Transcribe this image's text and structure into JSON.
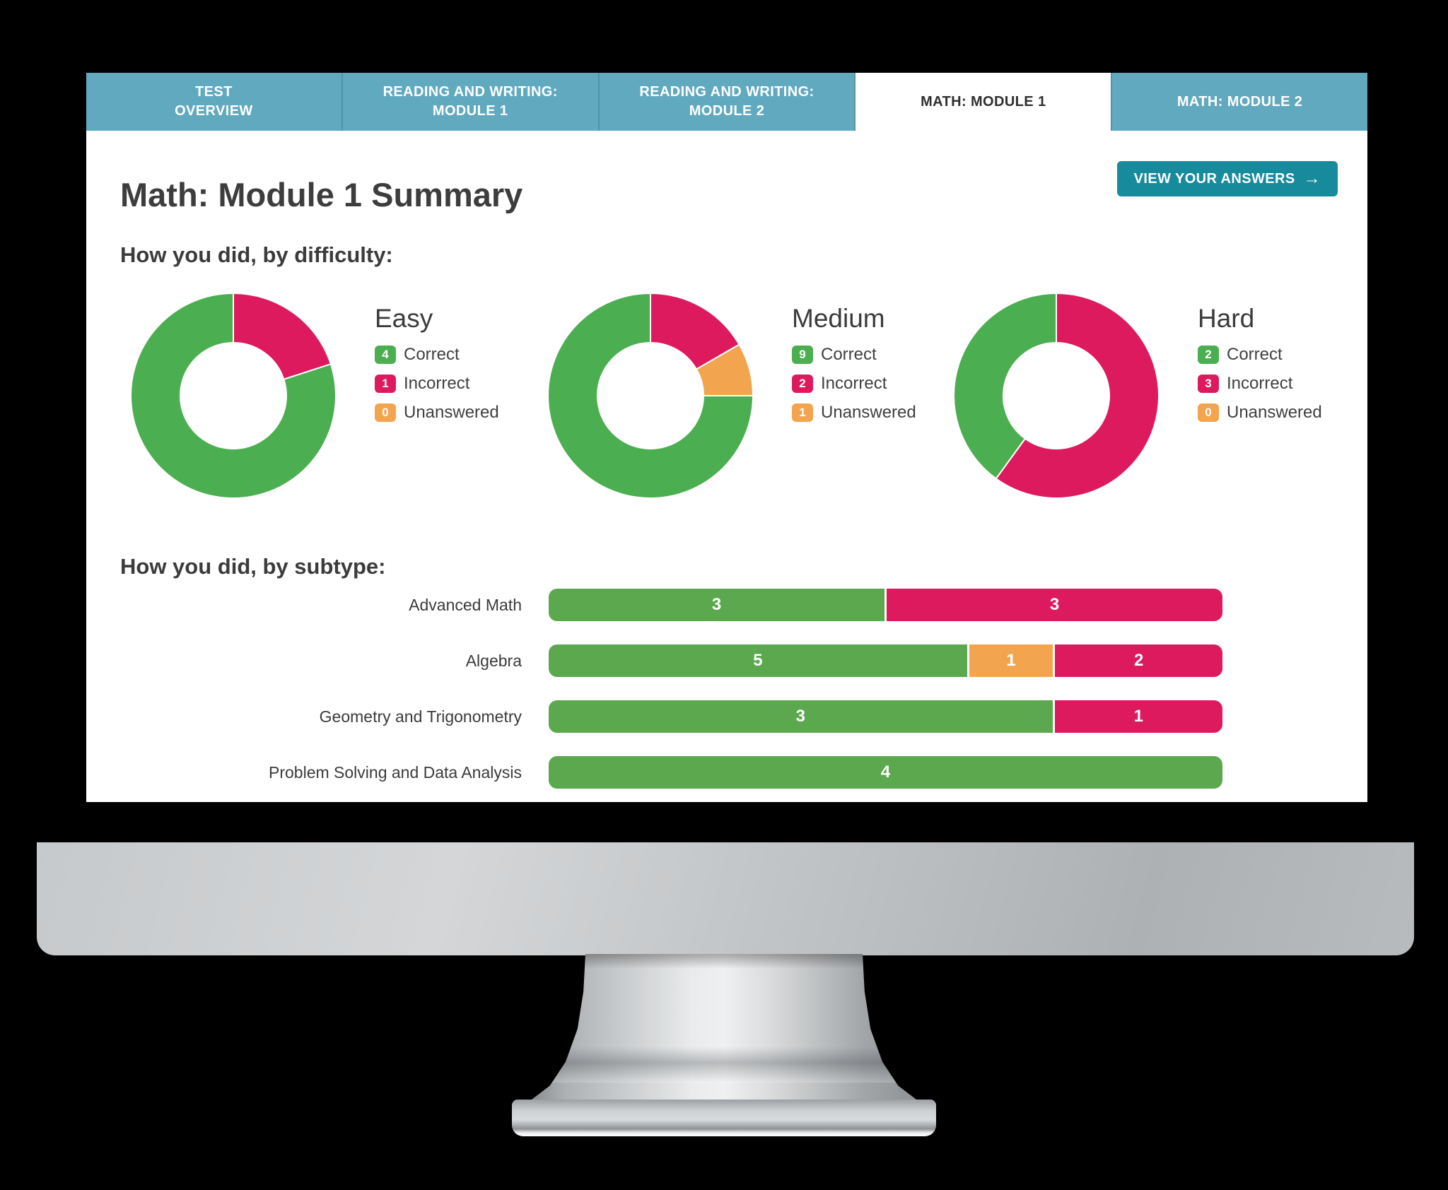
{
  "colors": {
    "tab_bg": "#61a9bf",
    "tab_separator": "#4f94a9",
    "tab_text": "#ffffff",
    "active_tab_bg": "#ffffff",
    "active_tab_text": "#2f2f2f",
    "button_bg": "#178a9c",
    "heading_text": "#3b3b3b",
    "correct": "#4bae50",
    "incorrect": "#dd1a5d",
    "unanswered": "#f3a44e",
    "bar_correct": "#5ba84f"
  },
  "tabs": [
    {
      "id": "test-overview",
      "lines": [
        "TEST",
        "OVERVIEW"
      ],
      "active": false
    },
    {
      "id": "reading-writing-module-1",
      "lines": [
        "READING AND WRITING:",
        "MODULE 1"
      ],
      "active": false
    },
    {
      "id": "reading-writing-module-2",
      "lines": [
        "READING AND WRITING:",
        "MODULE 2"
      ],
      "active": false
    },
    {
      "id": "math-module-1",
      "lines": [
        "MATH: MODULE 1"
      ],
      "active": true
    },
    {
      "id": "math-module-2",
      "lines": [
        "MATH: MODULE 2"
      ],
      "active": false
    }
  ],
  "page_title": "Math: Module 1 Summary",
  "view_answers_button": {
    "label": "VIEW YOUR ANSWERS",
    "arrow_icon": "→"
  },
  "difficulty_section": {
    "heading": "How you did, by difficulty:",
    "charts": [
      {
        "title": "Easy",
        "legend": [
          {
            "key": "correct",
            "value": 4,
            "label": "Correct"
          },
          {
            "key": "incorrect",
            "value": 1,
            "label": "Incorrect"
          },
          {
            "key": "unanswered",
            "value": 0,
            "label": "Unanswered"
          }
        ]
      },
      {
        "title": "Medium",
        "legend": [
          {
            "key": "correct",
            "value": 9,
            "label": "Correct"
          },
          {
            "key": "incorrect",
            "value": 2,
            "label": "Incorrect"
          },
          {
            "key": "unanswered",
            "value": 1,
            "label": "Unanswered"
          }
        ]
      },
      {
        "title": "Hard",
        "legend": [
          {
            "key": "correct",
            "value": 2,
            "label": "Correct"
          },
          {
            "key": "incorrect",
            "value": 3,
            "label": "Incorrect"
          },
          {
            "key": "unanswered",
            "value": 0,
            "label": "Unanswered"
          }
        ]
      }
    ]
  },
  "subtype_section": {
    "heading": "How you did, by subtype:",
    "rows": [
      {
        "label": "Advanced Math",
        "segments": [
          {
            "key": "bar_correct",
            "value": 3
          },
          {
            "key": "incorrect",
            "value": 3
          }
        ]
      },
      {
        "label": "Algebra",
        "segments": [
          {
            "key": "bar_correct",
            "value": 5
          },
          {
            "key": "unanswered",
            "value": 1
          },
          {
            "key": "incorrect",
            "value": 2
          }
        ]
      },
      {
        "label": "Geometry and Trigonometry",
        "segments": [
          {
            "key": "bar_correct",
            "value": 3
          },
          {
            "key": "incorrect",
            "value": 1
          }
        ]
      },
      {
        "label": "Problem Solving and Data Analysis",
        "segments": [
          {
            "key": "bar_correct",
            "value": 4
          }
        ]
      }
    ]
  },
  "chart_data": [
    {
      "type": "pie",
      "donut": true,
      "title": "Easy",
      "labels": [
        "Correct",
        "Incorrect",
        "Unanswered"
      ],
      "values": [
        4,
        1,
        0
      ],
      "colors": [
        "#4bae50",
        "#dd1a5d",
        "#f3a44e"
      ],
      "legend_position": "right"
    },
    {
      "type": "pie",
      "donut": true,
      "title": "Medium",
      "labels": [
        "Correct",
        "Incorrect",
        "Unanswered"
      ],
      "values": [
        9,
        2,
        1
      ],
      "colors": [
        "#4bae50",
        "#dd1a5d",
        "#f3a44e"
      ],
      "legend_position": "right"
    },
    {
      "type": "pie",
      "donut": true,
      "title": "Hard",
      "labels": [
        "Correct",
        "Incorrect",
        "Unanswered"
      ],
      "values": [
        2,
        3,
        0
      ],
      "colors": [
        "#4bae50",
        "#dd1a5d",
        "#f3a44e"
      ],
      "legend_position": "right"
    },
    {
      "type": "bar",
      "stacked": true,
      "orientation": "horizontal",
      "title": "How you did, by subtype:",
      "categories": [
        "Advanced Math",
        "Algebra",
        "Geometry and Trigonometry",
        "Problem Solving and Data Analysis"
      ],
      "series": [
        {
          "name": "Correct",
          "values": [
            3,
            5,
            3,
            4
          ]
        },
        {
          "name": "Unanswered",
          "values": [
            0,
            1,
            0,
            0
          ]
        },
        {
          "name": "Incorrect",
          "values": [
            3,
            2,
            1,
            0
          ]
        }
      ]
    }
  ]
}
